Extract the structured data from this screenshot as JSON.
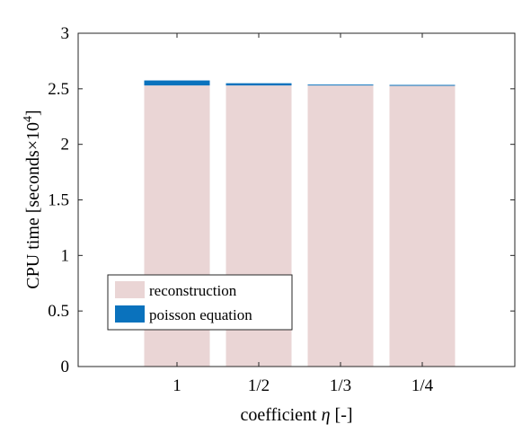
{
  "chart_data": {
    "type": "bar",
    "stacked": true,
    "categories": [
      "1",
      "1/2",
      "1/3",
      "1/4"
    ],
    "series": [
      {
        "name": "reconstruction",
        "color": "#ead5d5",
        "values": [
          2.53,
          2.53,
          2.53,
          2.53
        ]
      },
      {
        "name": "poisson equation",
        "color": "#0a72bd",
        "values": [
          0.045,
          0.02,
          0.008,
          0.005
        ]
      }
    ],
    "xlabel": {
      "text": "coefficient ",
      "symbol": "η",
      "suffix": " [-]"
    },
    "ylabel": {
      "text": "CPU time [seconds×10",
      "exponent": "4",
      "suffix": "]"
    },
    "ylim": [
      0,
      3
    ],
    "yticks": [
      "0",
      "0.5",
      "1",
      "1.5",
      "2",
      "2.5",
      "3"
    ],
    "legend_position": "bottom-left",
    "grid": false
  }
}
